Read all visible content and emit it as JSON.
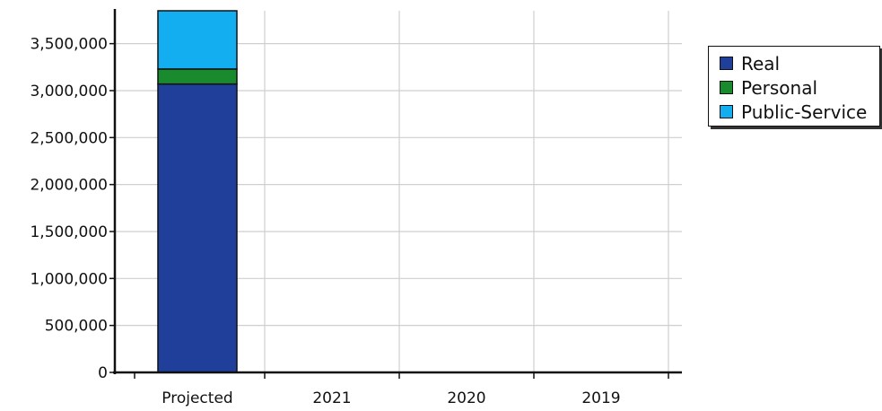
{
  "chart_data": {
    "type": "bar",
    "stacked": true,
    "categories": [
      "Projected",
      "2021",
      "2020",
      "2019"
    ],
    "series": [
      {
        "name": "Real",
        "color": "#1f3f9a",
        "values": [
          3070000,
          0,
          0,
          0
        ]
      },
      {
        "name": "Personal",
        "color": "#1a8a2e",
        "values": [
          160000,
          0,
          0,
          0
        ]
      },
      {
        "name": "Public-Service",
        "color": "#12aef0",
        "values": [
          620000,
          0,
          0,
          0
        ]
      }
    ],
    "y_ticks": [
      "0",
      "500,000",
      "1,000,000",
      "1,500,000",
      "2,000,000",
      "2,500,000",
      "3,000,000",
      "3,500,000"
    ],
    "ylim": [
      0,
      3850000
    ],
    "grid": true,
    "legend_position": "right"
  }
}
